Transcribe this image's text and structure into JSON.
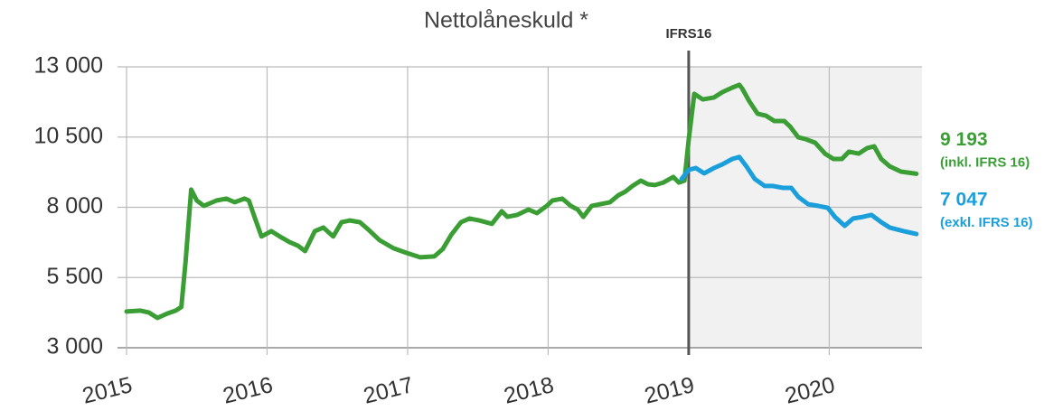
{
  "chart_data": {
    "type": "line",
    "title": "Nettolåneskuld *",
    "xlim": [
      2015,
      2020.66
    ],
    "xticks": [
      2015,
      2016,
      2017,
      2018,
      2019,
      2020
    ],
    "ylim": [
      3000,
      13000
    ],
    "yticks": [
      {
        "value": 3000,
        "label": "3 000"
      },
      {
        "value": 5500,
        "label": "5 500"
      },
      {
        "value": 8000,
        "label": "8 000"
      },
      {
        "value": 10500,
        "label": "10 500"
      },
      {
        "value": 13000,
        "label": "13 000"
      }
    ],
    "grid": true,
    "marker": {
      "x": 2019,
      "label": "IFRS16"
    },
    "series": [
      {
        "color": "#3a9e35",
        "end_label": "9 193",
        "sub_label": "(inkl. IFRS 16)",
        "x": [
          2015.0,
          2015.1,
          2015.16,
          2015.22,
          2015.29,
          2015.35,
          2015.39,
          2015.42,
          2015.46,
          2015.5,
          2015.55,
          2015.64,
          2015.71,
          2015.77,
          2015.84,
          2015.87,
          2015.91,
          2015.96,
          2016.03,
          2016.09,
          2016.16,
          2016.22,
          2016.27,
          2016.34,
          2016.4,
          2016.47,
          2016.53,
          2016.59,
          2016.66,
          2016.72,
          2016.8,
          2016.9,
          2016.99,
          2017.09,
          2017.19,
          2017.25,
          2017.31,
          2017.38,
          2017.44,
          2017.51,
          2017.6,
          2017.67,
          2017.71,
          2017.78,
          2017.86,
          2017.92,
          2017.99,
          2018.03,
          2018.1,
          2018.16,
          2018.21,
          2018.25,
          2018.31,
          2018.37,
          2018.44,
          2018.5,
          2018.55,
          2018.6,
          2018.66,
          2018.71,
          2018.76,
          2018.82,
          2018.89,
          2018.93,
          2018.97,
          2019.0,
          2019.04,
          2019.1,
          2019.18,
          2019.24,
          2019.31,
          2019.36,
          2019.38,
          2019.43,
          2019.49,
          2019.55,
          2019.61,
          2019.68,
          2019.72,
          2019.78,
          2019.83,
          2019.9,
          2019.97,
          2020.03,
          2020.09,
          2020.14,
          2020.21,
          2020.27,
          2020.32,
          2020.37,
          2020.43,
          2020.51,
          2020.62
        ],
        "values": [
          4290,
          4320,
          4250,
          4060,
          4220,
          4320,
          4450,
          6060,
          8630,
          8240,
          8050,
          8240,
          8310,
          8180,
          8310,
          8240,
          7660,
          6960,
          7150,
          6960,
          6760,
          6630,
          6440,
          7150,
          7280,
          6960,
          7470,
          7530,
          7470,
          7210,
          6830,
          6540,
          6380,
          6220,
          6250,
          6510,
          7020,
          7470,
          7600,
          7530,
          7410,
          7860,
          7660,
          7730,
          7920,
          7790,
          8050,
          8240,
          8310,
          8050,
          7920,
          7660,
          8050,
          8110,
          8180,
          8430,
          8560,
          8760,
          8950,
          8820,
          8790,
          8880,
          9080,
          8880,
          8950,
          10400,
          12040,
          11840,
          11910,
          12100,
          12260,
          12360,
          12230,
          11780,
          11330,
          11260,
          11070,
          11070,
          10880,
          10490,
          10430,
          10300,
          9910,
          9720,
          9720,
          9980,
          9910,
          10110,
          10170,
          9720,
          9460,
          9270,
          9193
        ]
      },
      {
        "color": "#1a9fdc",
        "end_label": "7 047",
        "sub_label": "(exkl. IFRS 16)",
        "x": [
          2018.95,
          2019.0,
          2019.05,
          2019.11,
          2019.18,
          2019.24,
          2019.31,
          2019.36,
          2019.41,
          2019.47,
          2019.54,
          2019.6,
          2019.67,
          2019.73,
          2019.78,
          2019.85,
          2019.92,
          2019.99,
          2020.04,
          2020.11,
          2020.17,
          2020.24,
          2020.3,
          2020.37,
          2020.43,
          2020.53,
          2020.62
        ],
        "values": [
          9010,
          9330,
          9400,
          9210,
          9400,
          9530,
          9720,
          9790,
          9460,
          9010,
          8760,
          8760,
          8690,
          8690,
          8370,
          8110,
          8050,
          7980,
          7660,
          7340,
          7600,
          7660,
          7730,
          7470,
          7280,
          7150,
          7047
        ]
      }
    ]
  }
}
